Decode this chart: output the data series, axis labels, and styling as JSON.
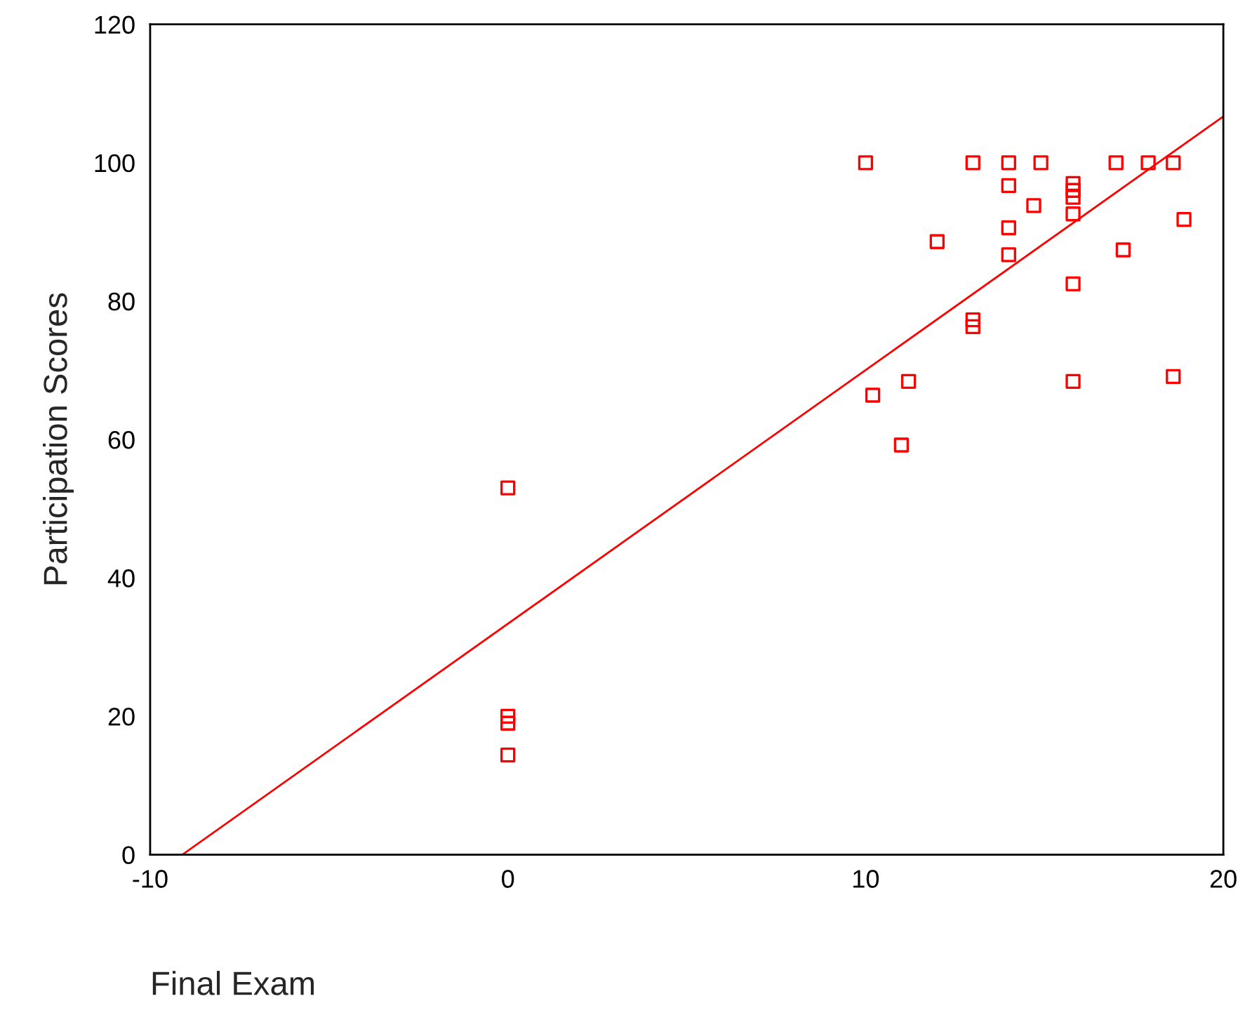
{
  "chart_data": {
    "type": "scatter",
    "xlabel": "Final Exam",
    "ylabel": "Participation Scores",
    "xlim": [
      -10,
      20
    ],
    "xticks": [
      -10,
      0,
      10,
      20
    ],
    "ylim": [
      0,
      120
    ],
    "yticks": [
      0,
      20,
      40,
      60,
      80,
      100,
      120
    ],
    "grid": false,
    "legend": false,
    "series": [
      {
        "marker": "square",
        "color": "#ff0000",
        "x": [
          0,
          0,
          0,
          0,
          10,
          13,
          14,
          14.9,
          17,
          17.9,
          18.6,
          14,
          15.8,
          15.8,
          15.8,
          14.7,
          15.8,
          18.9,
          14,
          12,
          14,
          17.2,
          15.8,
          13,
          13,
          11.2,
          10.2,
          15.8,
          18.6,
          11
        ],
        "values": [
          53,
          20,
          19,
          14.4,
          100,
          100,
          100,
          100,
          100,
          100,
          100,
          96.7,
          97,
          96,
          95,
          93.8,
          92.6,
          91.8,
          90.6,
          88.6,
          86.7,
          87.4,
          82.5,
          77.3,
          76.3,
          68.4,
          66.4,
          68.4,
          69.1,
          59.2
        ]
      },
      {
        "type": "line",
        "color": "#ff0000",
        "x": [
          -9.1,
          20
        ],
        "values": [
          0,
          106.7
        ],
        "line_style": "solid"
      }
    ]
  }
}
